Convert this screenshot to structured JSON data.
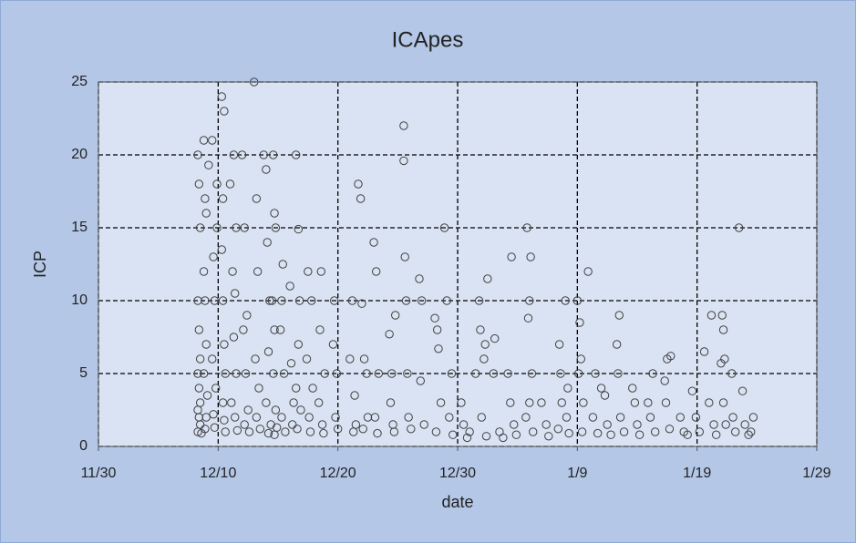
{
  "chart_data": {
    "type": "scatter",
    "title": "ICApes",
    "x_label": "date",
    "y_label": "ICP",
    "color": "#404040",
    "grid": true,
    "xlim": [
      0,
      60
    ],
    "xticks": [
      {
        "value": 0,
        "label": "11/30"
      },
      {
        "value": 10,
        "label": "12/10"
      },
      {
        "value": 20,
        "label": "12/20"
      },
      {
        "value": 30,
        "label": "12/30"
      },
      {
        "value": 40,
        "label": "1/9"
      },
      {
        "value": 50,
        "label": "1/19"
      },
      {
        "value": 60,
        "label": "1/29"
      }
    ],
    "ylim": [
      0,
      25
    ],
    "yticks": [
      0,
      5,
      10,
      15,
      20,
      25
    ],
    "x": [
      8.3,
      8.4,
      8.5,
      8.3,
      8.4,
      8.5,
      8.3,
      8.4,
      8.5,
      8.3,
      8.4,
      8.5,
      8.3,
      8.6,
      8.8,
      8.9,
      9.0,
      8.8,
      8.9,
      9.0,
      8.8,
      9.1,
      9.0,
      8.9,
      9.2,
      9.5,
      9.6,
      9.7,
      9.5,
      9.8,
      9.6,
      9.7,
      9.9,
      9.9,
      10.3,
      10.5,
      10.4,
      10.3,
      10.4,
      10.5,
      10.6,
      10.4,
      10.5,
      10.6,
      11.0,
      11.3,
      11.5,
      11.2,
      11.4,
      11.3,
      11.5,
      11.1,
      11.4,
      11.6,
      12.0,
      12.2,
      12.4,
      12.1,
      12.3,
      12.5,
      12.2,
      12.6,
      13.0,
      13.2,
      13.3,
      13.1,
      13.4,
      13.2,
      13.5,
      13.8,
      14.0,
      14.1,
      14.3,
      14.2,
      14.0,
      14.4,
      14.2,
      14.6,
      14.7,
      14.8,
      14.5,
      14.7,
      14.6,
      14.8,
      14.9,
      14.7,
      15.4,
      15.3,
      15.2,
      15.5,
      15.3,
      15.6,
      16.0,
      16.1,
      16.3,
      16.2,
      16.5,
      16.7,
      16.8,
      16.7,
      16.5,
      16.9,
      16.6,
      17.5,
      17.8,
      17.4,
      17.9,
      17.6,
      17.7,
      18.6,
      18.5,
      18.9,
      18.4,
      18.7,
      18.8,
      19.7,
      19.6,
      19.9,
      19.8,
      20.0,
      21.2,
      21.0,
      21.4,
      21.5,
      21.3,
      21.7,
      21.9,
      22.0,
      22.2,
      22.4,
      22.5,
      22.1,
      23.0,
      23.2,
      23.4,
      23.1,
      23.3,
      24.3,
      24.5,
      24.4,
      24.6,
      24.8,
      24.7,
      25.5,
      25.5,
      25.6,
      25.7,
      25.8,
      25.9,
      26.1,
      26.8,
      27.0,
      26.9,
      27.2,
      28.1,
      28.3,
      28.4,
      28.6,
      28.2,
      28.9,
      29.1,
      29.5,
      29.3,
      29.6,
      30.3,
      30.5,
      30.8,
      31.0,
      31.8,
      31.9,
      32.2,
      32.5,
      32.3,
      31.5,
      32.0,
      32.4,
      33.1,
      33.0,
      33.5,
      33.8,
      34.2,
      34.5,
      34.4,
      34.7,
      34.9,
      35.8,
      36.1,
      36.0,
      35.9,
      36.2,
      36.0,
      35.7,
      36.3,
      37.0,
      37.4,
      37.6,
      38.5,
      38.6,
      38.7,
      38.4,
      39.0,
      39.2,
      39.1,
      39.3,
      40.0,
      40.2,
      40.3,
      40.1,
      40.5,
      40.4,
      40.9,
      41.5,
      41.3,
      41.7,
      42.0,
      42.3,
      42.5,
      42.8,
      43.3,
      43.5,
      43.4,
      43.6,
      43.9,
      44.6,
      44.8,
      45.0,
      45.2,
      45.9,
      46.3,
      46.1,
      46.5,
      47.3,
      47.5,
      47.8,
      47.4,
      47.7,
      48.6,
      48.9,
      49.2,
      49.6,
      49.9,
      50.2,
      50.6,
      51.2,
      51.0,
      51.4,
      51.6,
      52.1,
      52.2,
      52.3,
      52.0,
      52.2,
      52.4,
      52.9,
      53.0,
      53.2,
      53.5,
      53.8,
      54.0,
      54.3,
      54.7,
      54.5
    ],
    "values": [
      20,
      18,
      15,
      10,
      8,
      6,
      5,
      4,
      3,
      2.5,
      2,
      1.5,
      1,
      0.9,
      21,
      17,
      16,
      12,
      10,
      7,
      5,
      3.5,
      2,
      1.2,
      19.3,
      21,
      13,
      10,
      6,
      4,
      2.2,
      1.3,
      18,
      15,
      24,
      23,
      17,
      13.5,
      10,
      7,
      5,
      3,
      1.8,
      1,
      18,
      20,
      15,
      12,
      10.5,
      7.5,
      5,
      3,
      2,
      1.1,
      20,
      15,
      9,
      8,
      5,
      2.5,
      1.5,
      1,
      25,
      17,
      12,
      6,
      4,
      2,
      1.2,
      20,
      19,
      14,
      10,
      6.5,
      3,
      1.5,
      0.9,
      20,
      16,
      15,
      10,
      8,
      5,
      2.5,
      1.3,
      0.8,
      12.5,
      10,
      8,
      5,
      2,
      1,
      11,
      5.7,
      3,
      1.5,
      20,
      14.9,
      10,
      7,
      4,
      2.5,
      1.2,
      12,
      10,
      6,
      4,
      2,
      1,
      12,
      8,
      5,
      3,
      1.5,
      0.9,
      10,
      7,
      5,
      2,
      1.2,
      10,
      6,
      3.5,
      1.5,
      1,
      18,
      17,
      9.8,
      6,
      5,
      2,
      1.2,
      14,
      12,
      5,
      2,
      0.9,
      7.7,
      5,
      3,
      1.5,
      9,
      1,
      22,
      19.6,
      13,
      10,
      5,
      2,
      1.2,
      11.5,
      10,
      4.5,
      1.5,
      8.8,
      8,
      6.7,
      3,
      1,
      15,
      10,
      5,
      2,
      0.8,
      3,
      1.5,
      0.6,
      1,
      10,
      8,
      6,
      11.5,
      7,
      5,
      2,
      0.7,
      7.4,
      5,
      1,
      0.6,
      5,
      13,
      3,
      1.5,
      0.8,
      15,
      13,
      10,
      8.8,
      5,
      3,
      2,
      1,
      3,
      1.5,
      0.7,
      7,
      5,
      3,
      1.2,
      10,
      4,
      2,
      0.9,
      10,
      8.5,
      6,
      5,
      3,
      1,
      12,
      5,
      2,
      0.9,
      4,
      3.5,
      1.5,
      0.8,
      7,
      9,
      5,
      2,
      1,
      4,
      3,
      1.5,
      0.8,
      3,
      5,
      2,
      1,
      4.5,
      6,
      6.2,
      3,
      1.2,
      2,
      1,
      0.8,
      3.8,
      2,
      1,
      6.5,
      9,
      3,
      1.5,
      0.8,
      9,
      8,
      6,
      5.7,
      3,
      1.5,
      5,
      2,
      1,
      15,
      3.8,
      1.5,
      0.8,
      2,
      1
    ]
  }
}
